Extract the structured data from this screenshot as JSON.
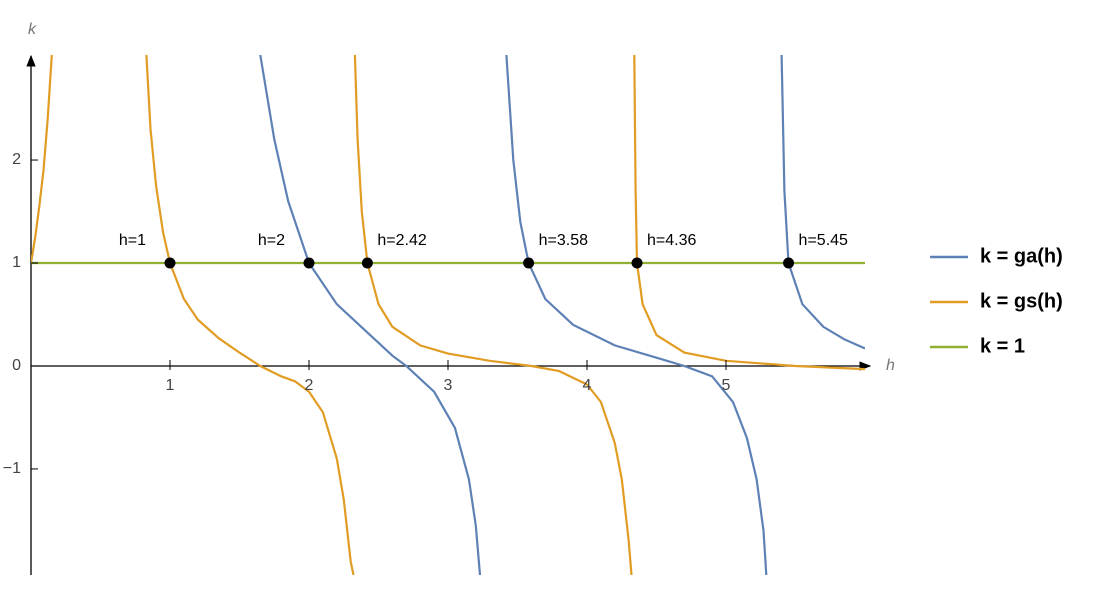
{
  "chart_data": {
    "type": "line",
    "x_label": "h",
    "y_label": "k",
    "xlim": [
      0,
      6
    ],
    "ylim": [
      -2.03,
      3.02
    ],
    "xticks": [
      1,
      2,
      3,
      4,
      5
    ],
    "yticks": [
      {
        "value": -1,
        "label": "−1"
      },
      0,
      1,
      2
    ],
    "series": [
      {
        "name": "k = ga(h)",
        "color": "#5e81b5",
        "x": [
          1.65,
          1.75,
          1.85,
          2,
          2.2,
          2.4,
          2.6,
          2.7,
          2.9,
          3.05,
          3.15,
          3.2,
          3.23,
          null,
          3.42,
          3.47,
          3.52,
          3.58,
          3.7,
          3.9,
          4.2,
          4.5,
          4.7,
          4.9,
          5.05,
          5.15,
          5.22,
          5.27,
          5.29,
          null,
          5.4,
          5.42,
          5.45,
          5.55,
          5.7,
          5.85,
          6
        ],
        "values": [
          3.02,
          2.2,
          1.6,
          1,
          0.6,
          0.35,
          0.1,
          0,
          -0.25,
          -0.6,
          -1.1,
          -1.55,
          -2.03,
          null,
          3.02,
          2,
          1.4,
          1,
          0.65,
          0.4,
          0.2,
          0.08,
          0,
          -0.1,
          -0.35,
          -0.7,
          -1.1,
          -1.6,
          -2.03,
          null,
          3.02,
          1.7,
          1,
          0.6,
          0.38,
          0.26,
          0.17
        ]
      },
      {
        "name": "k = gs(h)",
        "color": "#e19c24",
        "x": [
          0,
          0.03,
          0.06,
          0.09,
          0.12,
          0.15,
          null,
          0.83,
          0.86,
          0.9,
          0.95,
          1,
          1.1,
          1.2,
          1.35,
          1.5,
          1.65,
          1.8,
          1.9,
          2,
          2.1,
          2.2,
          2.25,
          2.3,
          2.32,
          null,
          2.33,
          2.35,
          2.38,
          2.42,
          2.5,
          2.6,
          2.8,
          3,
          3.3,
          3.6,
          3.8,
          4,
          4.1,
          4.2,
          4.25,
          4.3,
          4.32,
          null,
          4.34,
          4.35,
          4.36,
          4.4,
          4.5,
          4.7,
          5,
          5.5,
          6
        ],
        "values": [
          1,
          1.25,
          1.55,
          1.9,
          2.4,
          3.02,
          null,
          3.02,
          2.3,
          1.75,
          1.3,
          1,
          0.65,
          0.45,
          0.27,
          0.13,
          0,
          -0.1,
          -0.15,
          -0.25,
          -0.45,
          -0.9,
          -1.3,
          -1.9,
          -2.03,
          null,
          3.02,
          2.2,
          1.5,
          1,
          0.6,
          0.38,
          0.2,
          0.12,
          0.05,
          0,
          -0.05,
          -0.18,
          -0.35,
          -0.75,
          -1.1,
          -1.7,
          -2.03,
          null,
          3.02,
          1.7,
          1,
          0.6,
          0.3,
          0.13,
          0.05,
          0,
          -0.03
        ]
      },
      {
        "name": "k = 1",
        "color": "#8fb032",
        "x": [
          0,
          6
        ],
        "values": [
          1,
          1
        ]
      }
    ],
    "points": {
      "x": [
        1,
        2,
        2.42,
        3.58,
        4.36,
        5.45
      ],
      "y": [
        1,
        1,
        1,
        1,
        1,
        1
      ],
      "labels": [
        "h=1",
        "h=2",
        "h=2.42",
        "h=3.58",
        "h=4.36",
        "h=5.45"
      ]
    }
  }
}
